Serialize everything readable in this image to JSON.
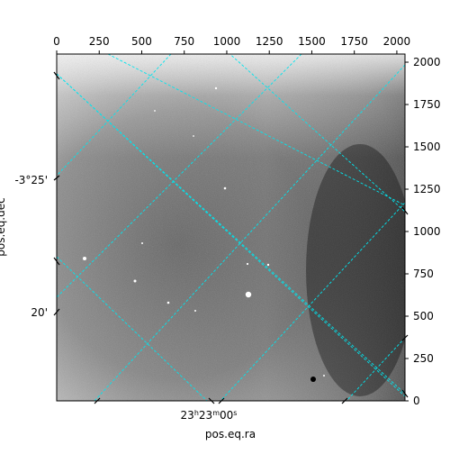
{
  "chart_data": {
    "type": "heatmap",
    "title": "",
    "xlabel": "pos.eq.ra",
    "ylabel": "pos.eq.dec",
    "pixel_axes": {
      "x_ticks": [
        0,
        250,
        500,
        750,
        1000,
        1250,
        1500,
        1750,
        2000
      ],
      "y_ticks": [
        0,
        250,
        500,
        750,
        1000,
        1250,
        1500,
        1750,
        2000
      ],
      "xlim": [
        0,
        2048
      ],
      "ylim": [
        0,
        2048
      ]
    },
    "world_axes": {
      "dec_tick_labels": [
        "-3°25'",
        "20'"
      ],
      "ra_tick_labels": [
        "23h23m00s"
      ]
    },
    "grid": {
      "on": true,
      "color": "#00ffff",
      "style": "dashed"
    },
    "colormap": "gray"
  }
}
